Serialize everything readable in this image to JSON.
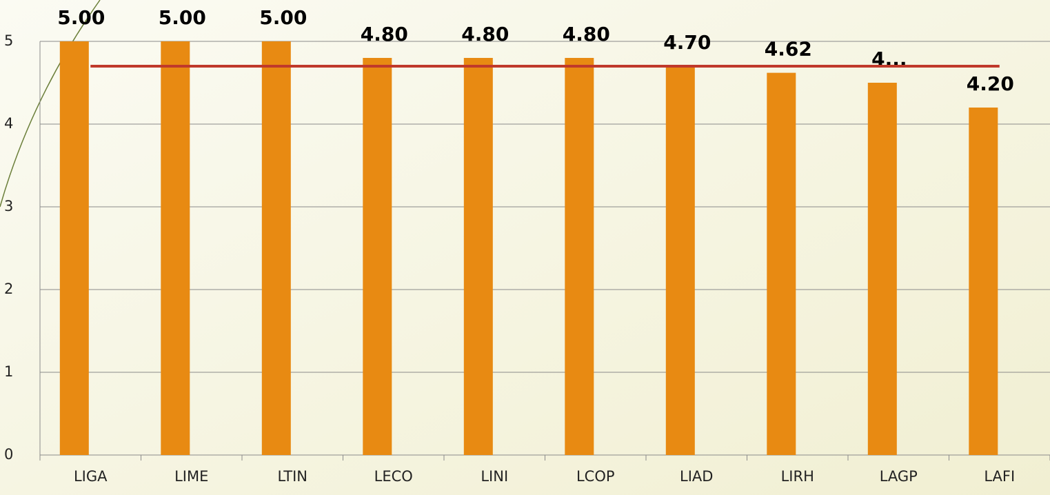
{
  "chart_data": {
    "type": "bar",
    "categories": [
      "LIGA",
      "LIME",
      "LTIN",
      "LECO",
      "LINI",
      "LCOP",
      "LIAD",
      "LIRH",
      "LAGP",
      "LAFI"
    ],
    "series": [
      {
        "type": "bar",
        "color": "#e88a12",
        "values": [
          5,
          5,
          5,
          4.8,
          4.8,
          4.8,
          4.7,
          4.62,
          4.5,
          4.2
        ],
        "value_labels": [
          "5.00",
          "5.00",
          "5.00",
          "4.80",
          "4.80",
          "4.80",
          "4.70",
          "4.62",
          "4...",
          "4.20"
        ]
      },
      {
        "type": "line",
        "color": "#c0392b",
        "values": [
          4.7,
          4.7,
          4.7,
          4.7,
          4.7,
          4.7,
          4.7,
          4.7,
          4.7,
          4.7
        ]
      }
    ],
    "ylim": [
      0,
      5
    ],
    "yticks": [
      0,
      1,
      2,
      3,
      4,
      5
    ],
    "grid": true
  }
}
